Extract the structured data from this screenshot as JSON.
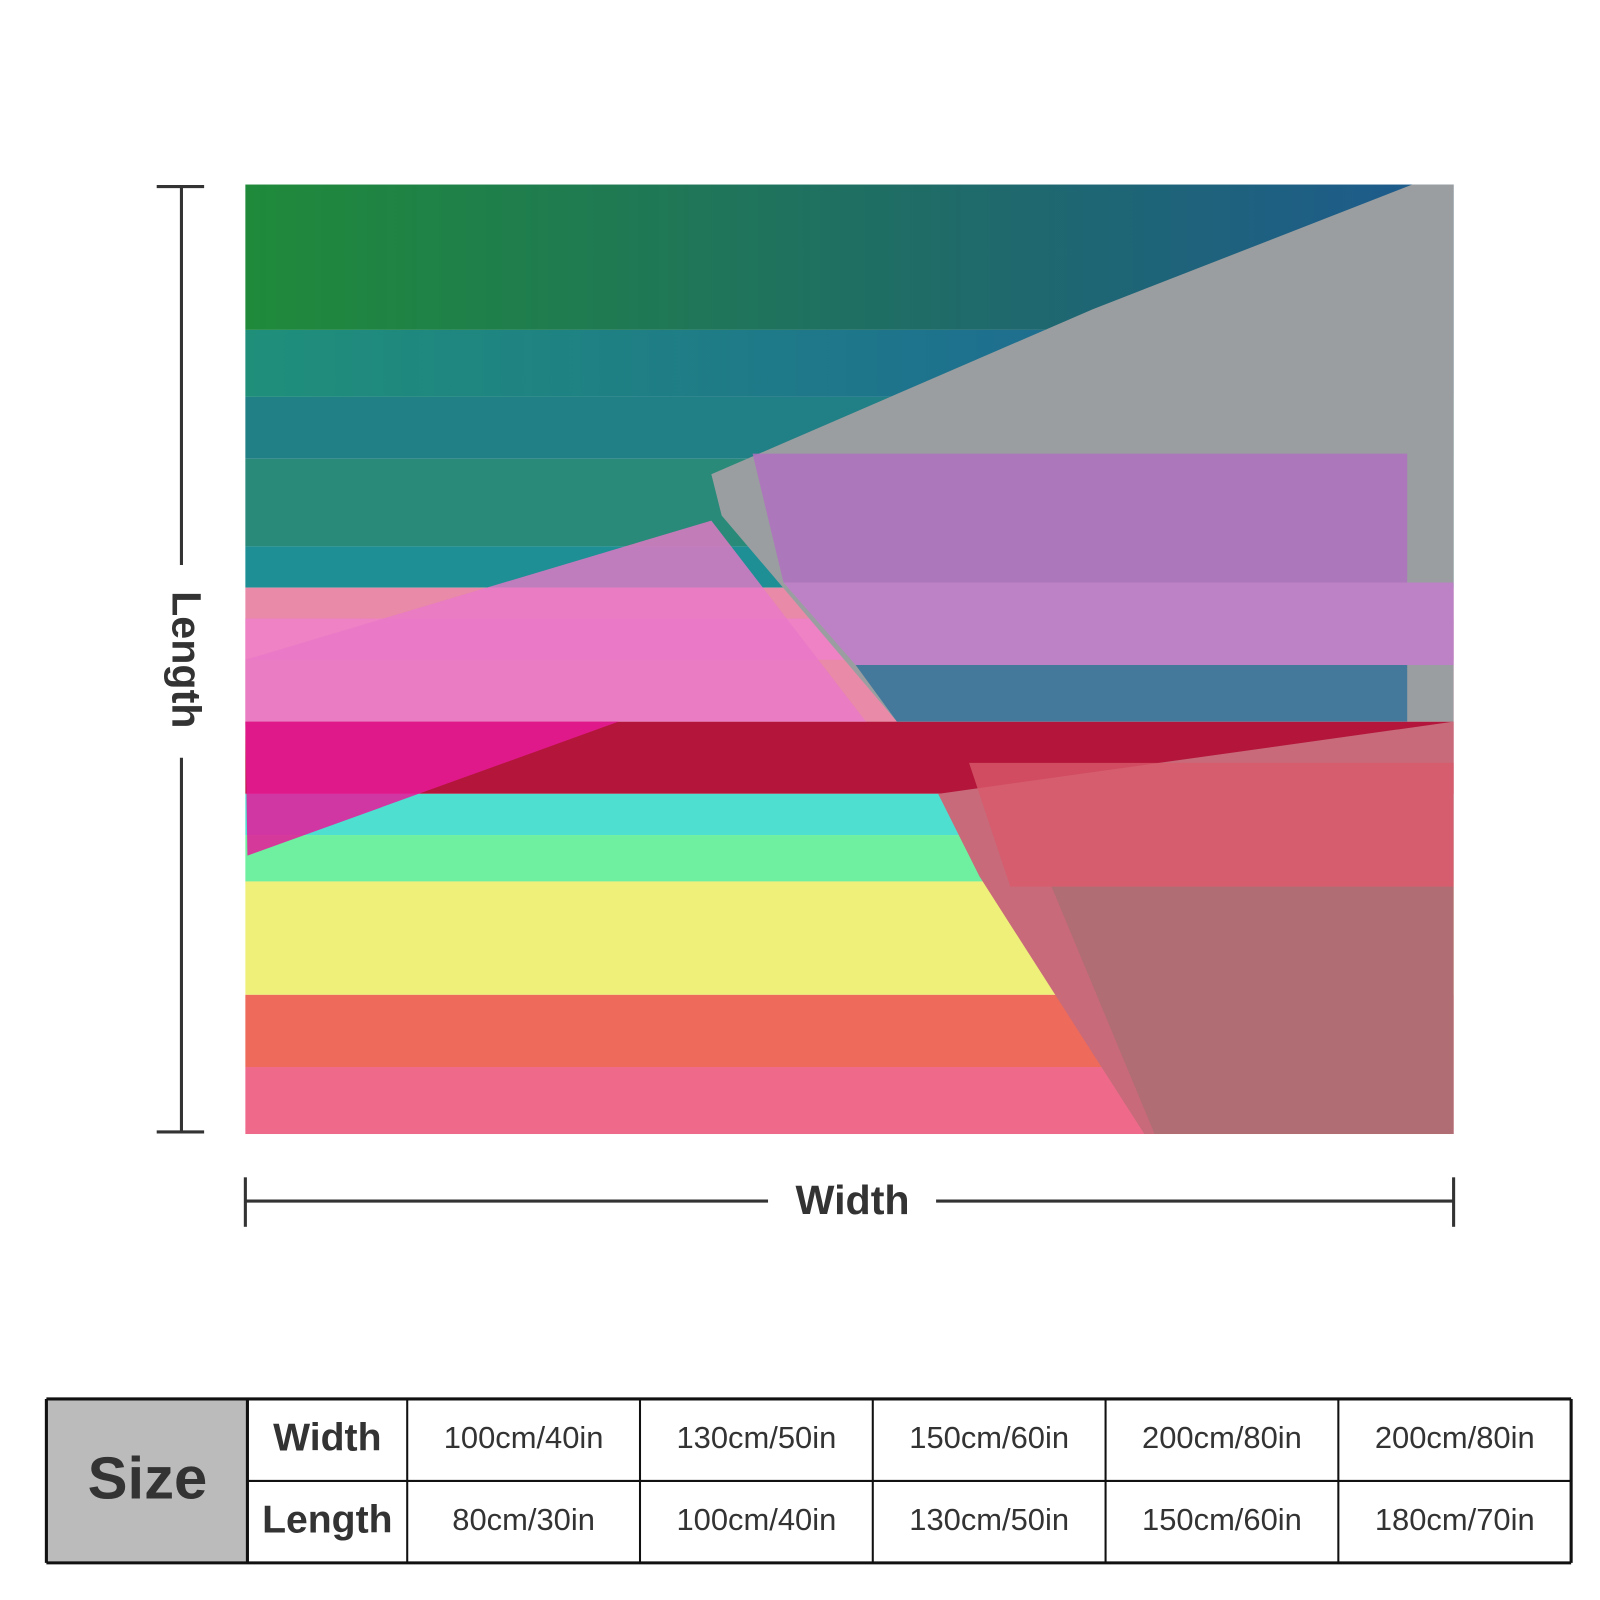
{
  "dimensions": {
    "length_label": "Length",
    "width_label": "Width"
  },
  "size_table": {
    "header": "Size",
    "rows": [
      {
        "label": "Width",
        "values": [
          "100cm/40in",
          "130cm/50in",
          "150cm/60in",
          "200cm/80in",
          "200cm/80in"
        ]
      },
      {
        "label": "Length",
        "values": [
          "80cm/30in",
          "100cm/40in",
          "130cm/50in",
          "150cm/60in",
          "180cm/70in"
        ]
      }
    ]
  }
}
